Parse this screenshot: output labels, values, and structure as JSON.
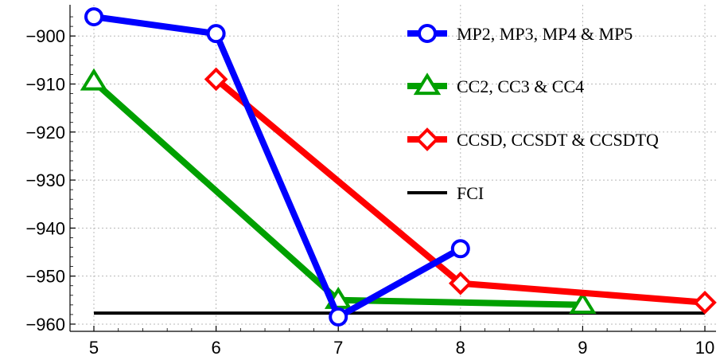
{
  "chart_data": {
    "type": "line",
    "title": "",
    "xlabel": "",
    "ylabel": "",
    "xlim": [
      5,
      10
    ],
    "ylim": [
      -961.5,
      -893.5
    ],
    "x_ticks": [
      5,
      6,
      7,
      8,
      9,
      10
    ],
    "y_ticks": [
      -900,
      -910,
      -920,
      -930,
      -940,
      -950,
      -960
    ],
    "grid": true,
    "legend_position": "top-right",
    "series": [
      {
        "name": "MP2, MP3, MP4 & MP5",
        "color": "#0000ff",
        "marker": "circle",
        "points": [
          [
            5,
            -896.0
          ],
          [
            6,
            -899.5
          ],
          [
            7,
            -958.5
          ],
          [
            8,
            -944.3
          ]
        ]
      },
      {
        "name": "CC2, CC3 & CC4",
        "color": "#00a000",
        "marker": "triangle",
        "points": [
          [
            5,
            -909.5
          ],
          [
            7,
            -955.0
          ],
          [
            9,
            -956.0
          ]
        ]
      },
      {
        "name": "CCSD, CCSDT & CCSDTQ",
        "color": "#ff0000",
        "marker": "diamond",
        "points": [
          [
            6,
            -909.0
          ],
          [
            8,
            -951.5
          ],
          [
            10,
            -955.5
          ]
        ]
      },
      {
        "name": "FCI",
        "color": "#000000",
        "marker": "none",
        "points": [
          [
            5,
            -957.7
          ],
          [
            10,
            -957.7
          ]
        ]
      }
    ]
  }
}
